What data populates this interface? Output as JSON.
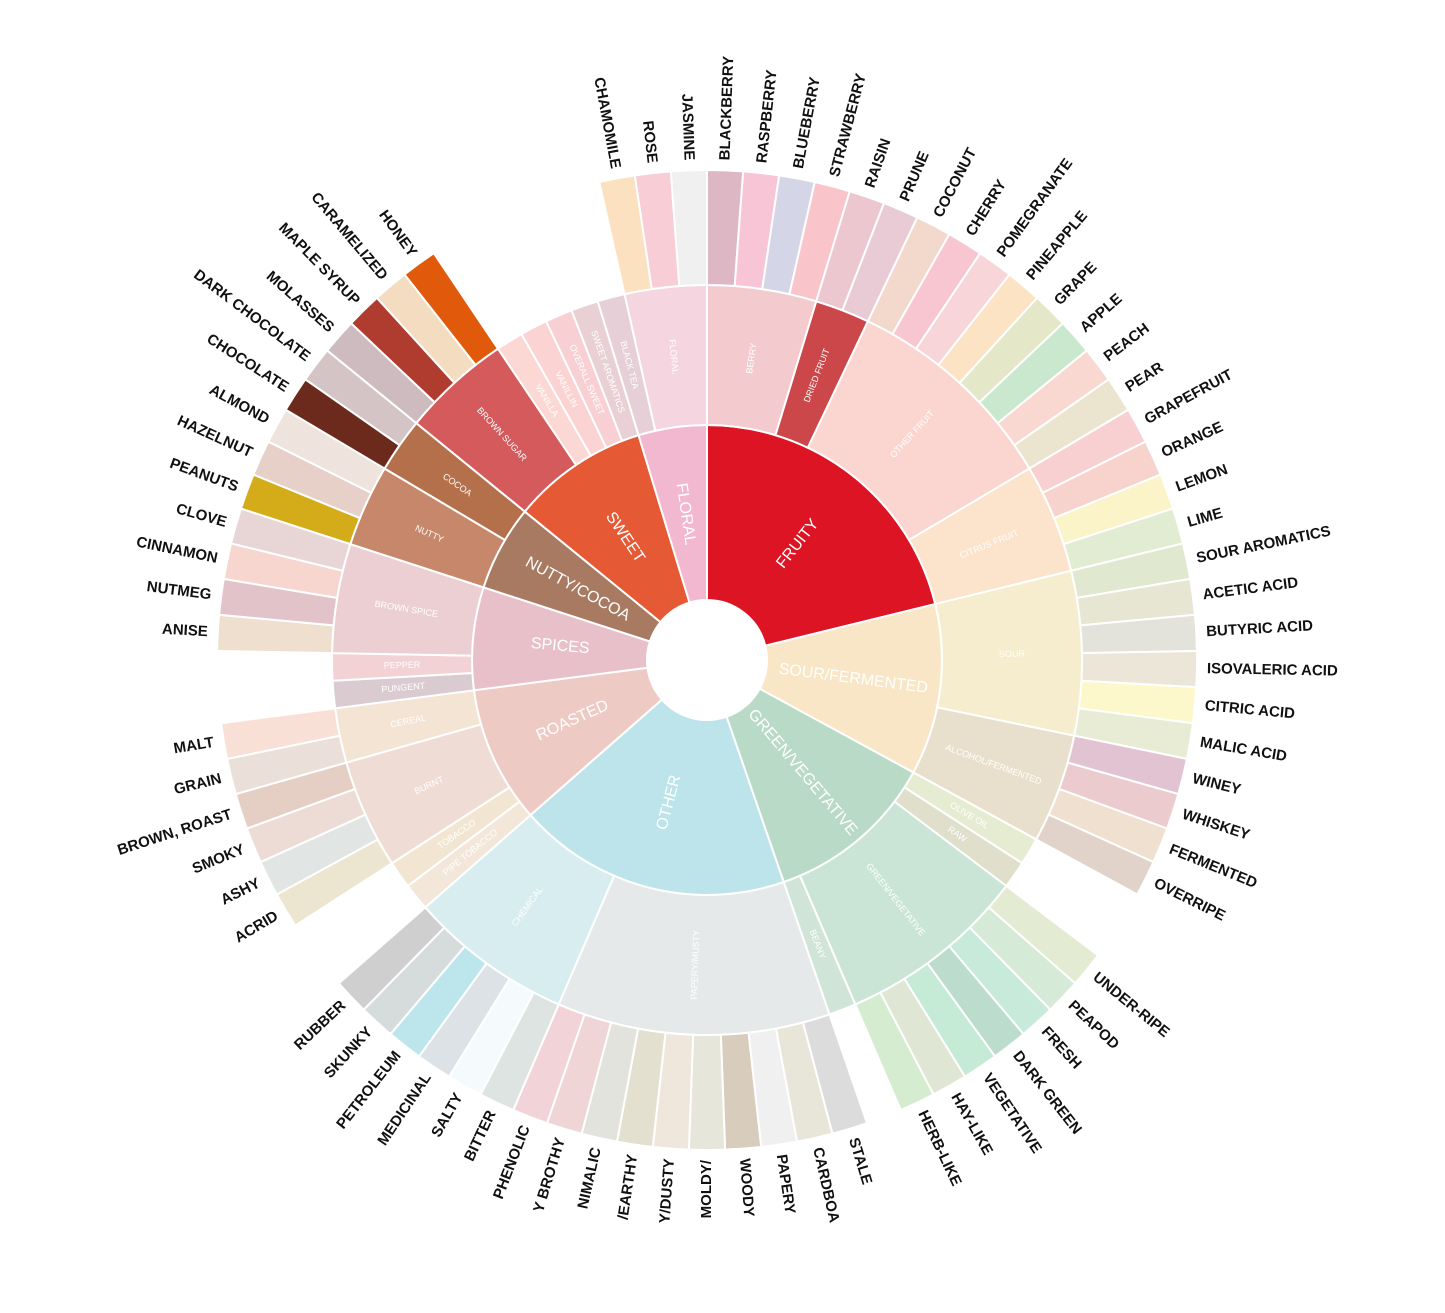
{
  "chart_data": {
    "type": "sunburst",
    "children": [
      {
        "name": "FRUITY",
        "color": "#dc1424",
        "children": [
          {
            "name": "BERRY",
            "color": "#f3cbcf",
            "children": [
              {
                "name": "BLACKBERRY",
                "color": "#ddb8c4"
              },
              {
                "name": "RASPBERRY",
                "color": "#f8c5d6"
              },
              {
                "name": "BLUEBERRY",
                "color": "#d5d5e8"
              },
              {
                "name": "STRAWBERRY",
                "color": "#f9c5ca"
              }
            ]
          },
          {
            "name": "DRIED FRUIT",
            "color": "#cc474a",
            "children": [
              {
                "name": "RAISIN",
                "color": "#ecc7d0"
              },
              {
                "name": "PRUNE",
                "color": "#e9cbd6"
              }
            ]
          },
          {
            "name": "OTHER FRUIT",
            "color": "#fbd5d0",
            "children": [
              {
                "name": "COCONUT",
                "color": "#f2d9cc"
              },
              {
                "name": "CHERRY",
                "color": "#f7c6d0"
              },
              {
                "name": "POMEGRANATE",
                "color": "#f8d5d9"
              },
              {
                "name": "PINEAPPLE",
                "color": "#fbe3c4"
              },
              {
                "name": "GRAPE",
                "color": "#e4e8c8"
              },
              {
                "name": "APPLE",
                "color": "#c9e8cd"
              },
              {
                "name": "PEACH",
                "color": "#fad8d2"
              },
              {
                "name": "PEAR",
                "color": "#ebe5d0"
              }
            ]
          },
          {
            "name": "CITRUS FRUIT",
            "color": "#fbe3cc",
            "children": [
              {
                "name": "GRAPEFRUIT",
                "color": "#f8d0d2"
              },
              {
                "name": "ORANGE",
                "color": "#f8d2cc"
              },
              {
                "name": "LEMON",
                "color": "#fbf4c9"
              },
              {
                "name": "LIME",
                "color": "#e2ecd2"
              }
            ]
          }
        ]
      },
      {
        "name": "SOUR/FERMENTED",
        "color": "#f8e6c6",
        "children": [
          {
            "name": "SOUR",
            "color": "#f5edcd",
            "children": [
              {
                "name": "SOUR AROMATICS",
                "color": "#e0e8d0"
              },
              {
                "name": "ACETIC ACID",
                "color": "#e6e6d2"
              },
              {
                "name": "BUTYRIC ACID",
                "color": "#e3e3db"
              },
              {
                "name": "ISOVALERIC ACID",
                "color": "#ebe6d7"
              },
              {
                "name": "CITRIC ACID",
                "color": "#fdf8cc"
              },
              {
                "name": "MALIC ACID",
                "color": "#e8ecd5"
              }
            ]
          },
          {
            "name": "ALCOHOL/FERMENTED",
            "color": "#e8e0cd",
            "children": [
              {
                "name": "WINEY",
                "color": "#e2c3d2"
              },
              {
                "name": "WHISKEY",
                "color": "#ebcbcd"
              },
              {
                "name": "FERMENTED",
                "color": "#efe0d0"
              },
              {
                "name": "OVERRIPE",
                "color": "#e1d3c9"
              }
            ]
          }
        ]
      },
      {
        "name": "GREEN/VEGETATIVE",
        "color": "#b9dac6",
        "children": [
          {
            "name": "OLIVE OIL",
            "color": "#e6ecd2"
          },
          {
            "name": "RAW",
            "color": "#dfdfcc"
          },
          {
            "name": "GREEN/VEGETATIVE",
            "color": "#cae5d6",
            "children": [
              {
                "name": "UNDER-RIPE",
                "color": "#e3ecd3"
              },
              {
                "name": "PEAPOD",
                "color": "#d6ead8"
              },
              {
                "name": "FRESH",
                "color": "#c8eadb"
              },
              {
                "name": "DARK GREEN",
                "color": "#bcddce"
              },
              {
                "name": "VEGETATIVE",
                "color": "#c5ead6"
              },
              {
                "name": "HAY-LIKE",
                "color": "#e0e6d4"
              },
              {
                "name": "HERB-LIKE",
                "color": "#d5ecd1"
              }
            ]
          },
          {
            "name": "BEANY",
            "color": "#d0e4d8"
          }
        ]
      },
      {
        "name": "OTHER",
        "color": "#bce4ea",
        "children": [
          {
            "name": "PAPERY/MUSTY",
            "color": "#e5e9ea",
            "children": [
              {
                "name": "STALE",
                "color": "#dcdcdc"
              },
              {
                "name": "CARDBOA",
                "color": "#e8e5d9"
              },
              {
                "name": "PAPERY",
                "color": "#f0f0f0"
              },
              {
                "name": "WOODY",
                "color": "#d8ccbd"
              },
              {
                "name": "MOLDY/",
                "color": "#e6e6da"
              },
              {
                "name": "Y/DUSTY",
                "color": "#efe6dc"
              },
              {
                "name": "/EARTHY",
                "color": "#e4e0d0"
              },
              {
                "name": "NIMALIC",
                "color": "#e3e3dd"
              },
              {
                "name": "Y BROTHY",
                "color": "#efd5d5"
              },
              {
                "name": "PHENOLIC",
                "color": "#f1d3d8"
              }
            ]
          },
          {
            "name": "CHEMICAL",
            "color": "#d8edf0",
            "children": [
              {
                "name": "BITTER",
                "color": "#dde4e2"
              },
              {
                "name": "SALTY",
                "color": "#f5fafc"
              },
              {
                "name": "MEDICINAL",
                "color": "#dde2e6"
              },
              {
                "name": "PETROLEUM",
                "color": "#bce6ec"
              },
              {
                "name": "SKUNKY",
                "color": "#d6dcdc"
              },
              {
                "name": "RUBBER",
                "color": "#cfcfcf"
              }
            ]
          }
        ]
      },
      {
        "name": "ROASTED",
        "color": "#eecac5",
        "children": [
          {
            "name": "PIPE TOBACCO",
            "color": "#f3e7d9"
          },
          {
            "name": "TOBACCO",
            "color": "#f2e6d3"
          },
          {
            "name": "BURNT",
            "color": "#efdcd5",
            "children": [
              {
                "name": "ACRID",
                "color": "#ece6d0"
              },
              {
                "name": "ASHY",
                "color": "#e1e5e3"
              },
              {
                "name": "SMOKY",
                "color": "#eddcd5"
              },
              {
                "name": "BROWN, ROAST",
                "color": "#e5cfc4"
              }
            ]
          },
          {
            "name": "CEREAL",
            "color": "#f4e4d4",
            "children": [
              {
                "name": "GRAIN",
                "color": "#ebe0d9"
              },
              {
                "name": "MALT",
                "color": "#f8e0d6"
              }
            ]
          }
        ]
      },
      {
        "name": "SPICES",
        "color": "#e8c0ca",
        "children": [
          {
            "name": "PUNGENT",
            "color": "#dacbd1"
          },
          {
            "name": "PEPPER",
            "color": "#f3d2d5"
          },
          {
            "name": "BROWN SPICE",
            "color": "#ebcfd2",
            "children": [
              {
                "name": "ANISE",
                "color": "#efdfcf"
              },
              {
                "name": "NUTMEG",
                "color": "#e2c3c9"
              },
              {
                "name": "CINNAMON",
                "color": "#f7d6cf"
              },
              {
                "name": "CLOVE",
                "color": "#e8d6d7"
              }
            ]
          }
        ]
      },
      {
        "name": "NUTTY/COCOA",
        "color": "#a97a62",
        "children": [
          {
            "name": "NUTTY",
            "color": "#c6876a",
            "children": [
              {
                "name": "PEANUTS",
                "color": "#d4ac1a"
              },
              {
                "name": "HAZELNUT",
                "color": "#e6d0c8"
              },
              {
                "name": "ALMOND",
                "color": "#eee3dd"
              }
            ]
          },
          {
            "name": "COCOA",
            "color": "#b4704b",
            "children": [
              {
                "name": "CHOCOLATE",
                "color": "#6c2a1c"
              },
              {
                "name": "DARK CHOCOLATE",
                "color": "#d4c4c6"
              }
            ]
          }
        ]
      },
      {
        "name": "SWEET",
        "color": "#e55a35",
        "children": [
          {
            "name": "BROWN SUGAR",
            "color": "#d55a5c",
            "children": [
              {
                "name": "MOLASSES",
                "color": "#cdbbbf"
              },
              {
                "name": "MAPLE SYRUP",
                "color": "#b03c30"
              },
              {
                "name": "CARAMELIZED",
                "color": "#f3dcc0"
              },
              {
                "name": "HONEY",
                "color": "#e15a0c"
              }
            ]
          },
          {
            "name": "VANILLA",
            "color": "#fbd8d4"
          },
          {
            "name": "VANILLIN",
            "color": "#fbd3d3"
          },
          {
            "name": "OVERALL SWEET",
            "color": "#f8d0d4"
          },
          {
            "name": "SWEET AROMATICS",
            "color": "#e8d0d4"
          }
        ]
      },
      {
        "name": "FLORAL",
        "color": "#f2b8cf",
        "children": [
          {
            "name": "BLACK TEA",
            "color": "#e6cfd6"
          },
          {
            "name": "FLORAL",
            "color": "#f5d5df",
            "children": [
              {
                "name": "CHAMOMILE",
                "color": "#fbe1c0"
              },
              {
                "name": "ROSE",
                "color": "#f8cdd6"
              },
              {
                "name": "JASMINE",
                "color": "#f0f0f0"
              }
            ]
          }
        ]
      }
    ]
  }
}
